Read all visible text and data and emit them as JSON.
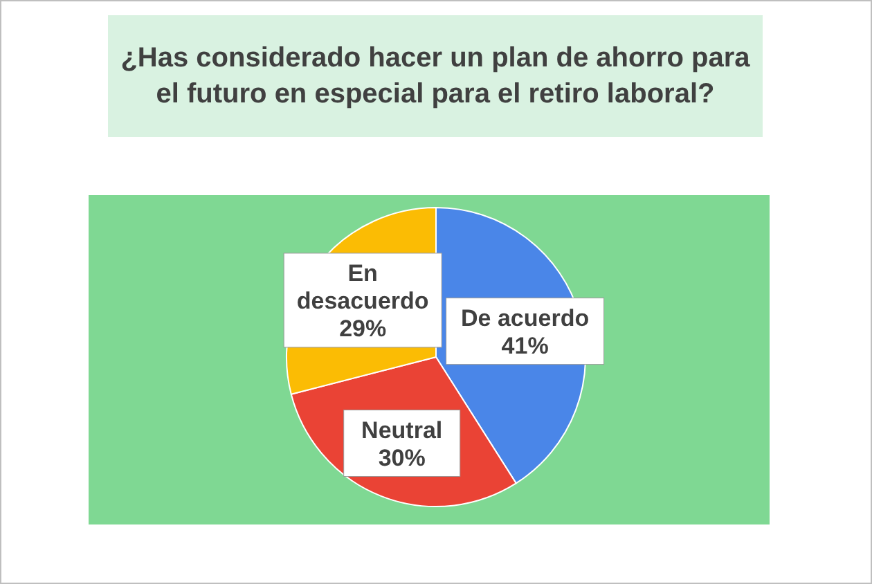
{
  "chart_data": {
    "type": "pie",
    "title": "¿Has considerado hacer un plan de ahorro para el futuro en especial para el retiro laboral?",
    "categories": [
      "De acuerdo",
      "Neutral",
      "En desacuerdo"
    ],
    "values": [
      41,
      30,
      29
    ],
    "colors": [
      "#4a86e8",
      "#ea4335",
      "#fbbc04"
    ],
    "value_labels": [
      "41%",
      "30%",
      "29%"
    ]
  }
}
